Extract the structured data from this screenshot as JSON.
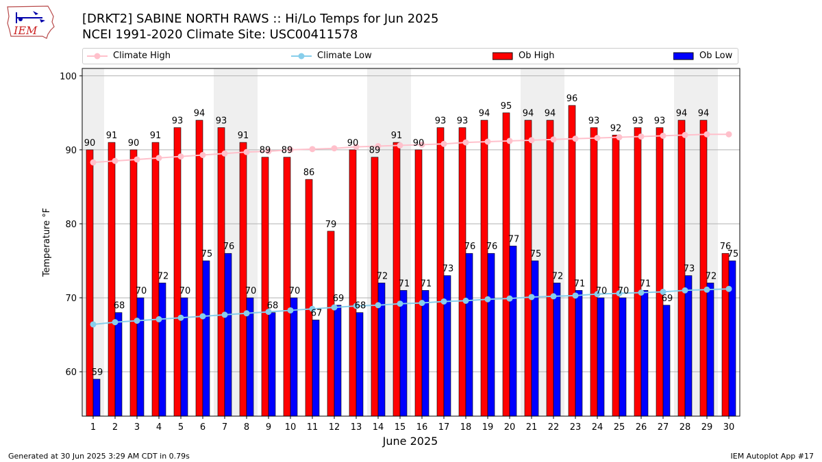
{
  "header": {
    "title_line1": "[DRKT2] SABINE NORTH RAWS :: Hi/Lo Temps for Jun 2025",
    "title_line2": "NCEI 1991-2020 Climate Site: USC00411578",
    "logo_text": "IEM"
  },
  "footer": {
    "left": "Generated at 30 Jun 2025 3:29 AM CDT in 0.79s",
    "right": "IEM Autoplot App #17"
  },
  "colors": {
    "ob_high": "#ff0000",
    "ob_low": "#0000ff",
    "climate_high": "#ffc0cb",
    "climate_low": "#87ceeb",
    "weekend_shade": "#efefef"
  },
  "chart_data": {
    "type": "bar",
    "xlabel": "June 2025",
    "ylabel": "Temperature °F",
    "ylim": [
      54,
      101
    ],
    "yticks": [
      60,
      70,
      80,
      90,
      100
    ],
    "grid": true,
    "legend_position": "top",
    "categories": [
      "1",
      "2",
      "3",
      "4",
      "5",
      "6",
      "7",
      "8",
      "9",
      "10",
      "11",
      "12",
      "13",
      "14",
      "15",
      "16",
      "17",
      "18",
      "19",
      "20",
      "21",
      "22",
      "23",
      "24",
      "25",
      "26",
      "27",
      "28",
      "29",
      "30"
    ],
    "weekend_days": [
      1,
      7,
      8,
      14,
      15,
      21,
      22,
      28,
      29
    ],
    "series": [
      {
        "name": "Ob High",
        "kind": "bar",
        "color": "#ff0000",
        "values": [
          90,
          91,
          90,
          91,
          93,
          94,
          93,
          91,
          89,
          89,
          86,
          79,
          90,
          89,
          91,
          90,
          93,
          93,
          94,
          95,
          94,
          94,
          96,
          93,
          92,
          93,
          93,
          94,
          94,
          76
        ]
      },
      {
        "name": "Ob Low",
        "kind": "bar",
        "color": "#0000ff",
        "values": [
          59,
          68,
          70,
          72,
          70,
          75,
          76,
          70,
          68,
          70,
          67,
          69,
          68,
          72,
          71,
          71,
          73,
          76,
          76,
          77,
          75,
          72,
          71,
          70,
          70,
          71,
          69,
          73,
          72,
          75
        ]
      },
      {
        "name": "Climate High",
        "kind": "line",
        "color": "#ffc0cb",
        "values": [
          88.3,
          88.5,
          88.7,
          88.9,
          89.1,
          89.3,
          89.5,
          89.7,
          89.8,
          90.0,
          90.1,
          90.2,
          90.4,
          90.5,
          90.6,
          90.7,
          90.8,
          91.0,
          91.1,
          91.2,
          91.3,
          91.4,
          91.5,
          91.6,
          91.7,
          91.8,
          91.9,
          92.0,
          92.1,
          92.1
        ]
      },
      {
        "name": "Climate Low",
        "kind": "line",
        "color": "#87ceeb",
        "values": [
          66.4,
          66.7,
          66.9,
          67.1,
          67.3,
          67.5,
          67.7,
          67.9,
          68.1,
          68.3,
          68.5,
          68.7,
          68.9,
          69.0,
          69.2,
          69.3,
          69.5,
          69.6,
          69.8,
          69.9,
          70.1,
          70.2,
          70.3,
          70.5,
          70.6,
          70.7,
          70.8,
          71.0,
          71.1,
          71.2
        ]
      }
    ]
  }
}
